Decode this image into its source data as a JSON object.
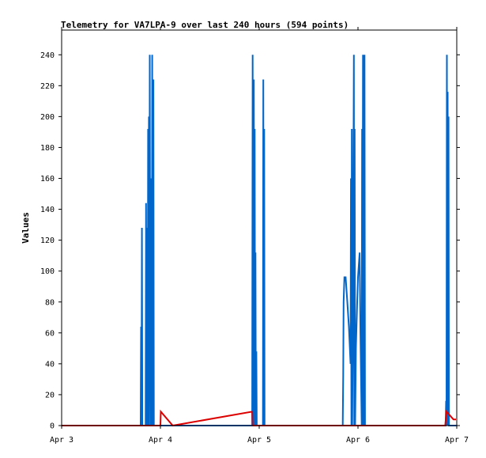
{
  "chart_data": {
    "type": "line",
    "title": "Telemetry for VA7LPA-9 over last 240 hours (594 points)",
    "xlabel": "",
    "ylabel": "Values",
    "xlim": [
      0,
      96
    ],
    "ylim": [
      0,
      256
    ],
    "x_ticks": [
      {
        "x": 0,
        "label": "Apr 3"
      },
      {
        "x": 24,
        "label": "Apr 4"
      },
      {
        "x": 48,
        "label": "Apr 5"
      },
      {
        "x": 72,
        "label": "Apr 6"
      },
      {
        "x": 96,
        "label": "Apr 7"
      }
    ],
    "y_ticks": [
      0,
      20,
      40,
      60,
      80,
      100,
      120,
      140,
      160,
      180,
      200,
      220,
      240
    ],
    "grid": false,
    "series": [
      {
        "color": "#0066cc",
        "points": [
          [
            0,
            0
          ],
          [
            19.2,
            0
          ],
          [
            19.3,
            64
          ],
          [
            19.4,
            0
          ],
          [
            19.5,
            128
          ],
          [
            19.6,
            0
          ],
          [
            20.4,
            0
          ],
          [
            20.5,
            144
          ],
          [
            20.6,
            0
          ],
          [
            20.7,
            128
          ],
          [
            20.8,
            48
          ],
          [
            20.9,
            0
          ],
          [
            21.0,
            192
          ],
          [
            21.1,
            32
          ],
          [
            21.2,
            200
          ],
          [
            21.3,
            0
          ],
          [
            21.4,
            240
          ],
          [
            21.5,
            96
          ],
          [
            21.6,
            160
          ],
          [
            21.7,
            0
          ],
          [
            21.8,
            80
          ],
          [
            21.9,
            0
          ],
          [
            22.0,
            240
          ],
          [
            22.1,
            0
          ],
          [
            22.3,
            224
          ],
          [
            22.4,
            0
          ],
          [
            46.3,
            0
          ],
          [
            46.4,
            240
          ],
          [
            46.5,
            96
          ],
          [
            46.6,
            0
          ],
          [
            46.7,
            224
          ],
          [
            46.8,
            0
          ],
          [
            46.9,
            192
          ],
          [
            47.0,
            0
          ],
          [
            47.1,
            112
          ],
          [
            47.2,
            0
          ],
          [
            47.3,
            48
          ],
          [
            47.4,
            0
          ],
          [
            48.9,
            0
          ],
          [
            49.0,
            224
          ],
          [
            49.1,
            0
          ],
          [
            49.2,
            192
          ],
          [
            49.3,
            0
          ],
          [
            68.3,
            0
          ],
          [
            68.4,
            32
          ],
          [
            68.5,
            80
          ],
          [
            68.7,
            96
          ],
          [
            69.0,
            96
          ],
          [
            69.4,
            80
          ],
          [
            69.8,
            64
          ],
          [
            70.2,
            40
          ],
          [
            70.3,
            160
          ],
          [
            70.4,
            0
          ],
          [
            70.5,
            192
          ],
          [
            70.6,
            0
          ],
          [
            70.8,
            80
          ],
          [
            71.0,
            240
          ],
          [
            71.1,
            0
          ],
          [
            71.2,
            192
          ],
          [
            71.3,
            0
          ],
          [
            71.5,
            50
          ],
          [
            71.8,
            80
          ],
          [
            72.0,
            96
          ],
          [
            72.4,
            112
          ],
          [
            72.6,
            60
          ],
          [
            72.9,
            0
          ],
          [
            73.0,
            192
          ],
          [
            73.1,
            0
          ],
          [
            73.2,
            240
          ],
          [
            73.3,
            0
          ],
          [
            73.4,
            240
          ],
          [
            73.5,
            0
          ],
          [
            73.6,
            240
          ],
          [
            73.7,
            0
          ],
          [
            93.3,
            0
          ],
          [
            93.4,
            16
          ],
          [
            93.5,
            0
          ],
          [
            93.6,
            240
          ],
          [
            93.7,
            0
          ],
          [
            93.8,
            216
          ],
          [
            93.9,
            0
          ],
          [
            94.0,
            200
          ],
          [
            94.1,
            0
          ],
          [
            96,
            0
          ]
        ]
      },
      {
        "color": "#dd0000",
        "points": [
          [
            0,
            0
          ],
          [
            24.0,
            0
          ],
          [
            24.1,
            9
          ],
          [
            27.0,
            0
          ],
          [
            46.3,
            9
          ],
          [
            46.4,
            0
          ],
          [
            93.2,
            0
          ],
          [
            93.5,
            9
          ],
          [
            95.2,
            4
          ],
          [
            95.5,
            4
          ],
          [
            95.8,
            4
          ]
        ]
      }
    ]
  }
}
